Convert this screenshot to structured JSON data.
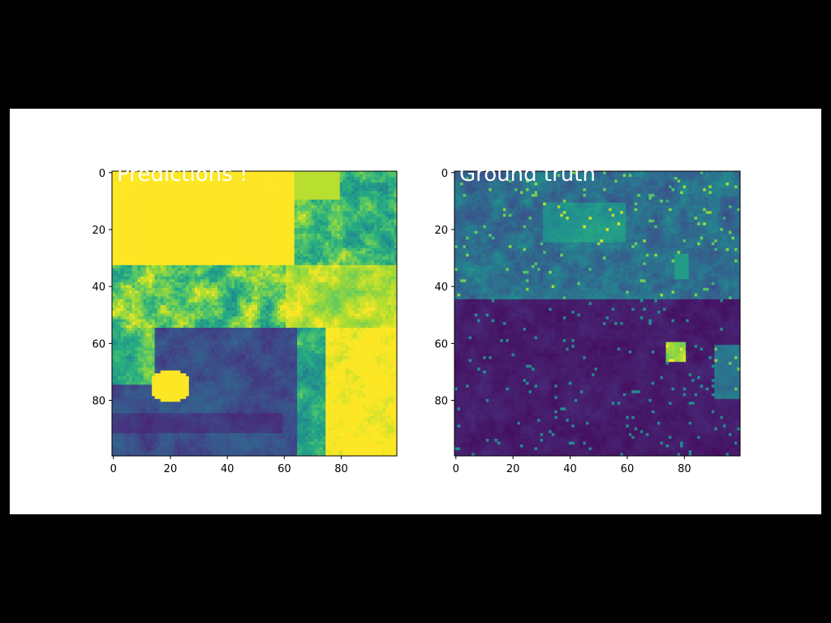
{
  "chart_data": [
    {
      "type": "heatmap",
      "title": "Predictions !",
      "colormap": "viridis",
      "grid_size": [
        100,
        100
      ],
      "xlim": [
        0,
        99
      ],
      "ylim": [
        99,
        0
      ],
      "xticks": [
        "0",
        "20",
        "40",
        "60",
        "80"
      ],
      "yticks": [
        "0",
        "20",
        "40",
        "60",
        "80"
      ],
      "xtick_values": [
        0,
        20,
        40,
        60,
        80
      ],
      "ytick_values": [
        0,
        20,
        40,
        60,
        80
      ],
      "legend": "none",
      "grid": false,
      "regions": [
        {
          "description_rows": [
            0,
            33
          ],
          "level": "high (yellow)"
        },
        {
          "description_rows": [
            0,
            30
          ],
          "cols": [
            65,
            99
          ],
          "level": "mixed (green/blue)"
        },
        {
          "description_rows": [
            34,
            55
          ],
          "level": "mixed, transitional"
        },
        {
          "description_rows": [
            55,
            99
          ],
          "cols": [
            20,
            70
          ],
          "level": "low (dark purple/blue)"
        },
        {
          "description_rows": [
            55,
            99
          ],
          "cols": [
            75,
            99
          ],
          "level": "high (yellow)"
        },
        {
          "description_rows": [
            70,
            82
          ],
          "cols": [
            12,
            28
          ],
          "level": "high (yellow blob)"
        }
      ]
    },
    {
      "type": "heatmap",
      "title": "Ground truth",
      "colormap": "viridis",
      "grid_size": [
        100,
        100
      ],
      "xlim": [
        0,
        99
      ],
      "ylim": [
        99,
        0
      ],
      "xticks": [
        "0",
        "20",
        "40",
        "60",
        "80"
      ],
      "yticks": [
        "0",
        "20",
        "40",
        "60",
        "80"
      ],
      "xtick_values": [
        0,
        20,
        40,
        60,
        80
      ],
      "ytick_values": [
        0,
        20,
        40,
        60,
        80
      ],
      "legend": "none",
      "grid": false,
      "regions": [
        {
          "description_rows": [
            0,
            45
          ],
          "level": "low-mid (blue/teal patches)"
        },
        {
          "description_rows": [
            45,
            99
          ],
          "level": "low (dark purple)"
        },
        {
          "description_rows": [
            60,
            66
          ],
          "cols": [
            74,
            80
          ],
          "level": "mid-high (green speck)"
        }
      ]
    }
  ],
  "colors": {
    "figure_background": "#ffffff",
    "page_background": "#000000",
    "title_color": "#ffffff",
    "viridis_low": "#440154",
    "viridis_mid": "#21918c",
    "viridis_high": "#fde725"
  }
}
